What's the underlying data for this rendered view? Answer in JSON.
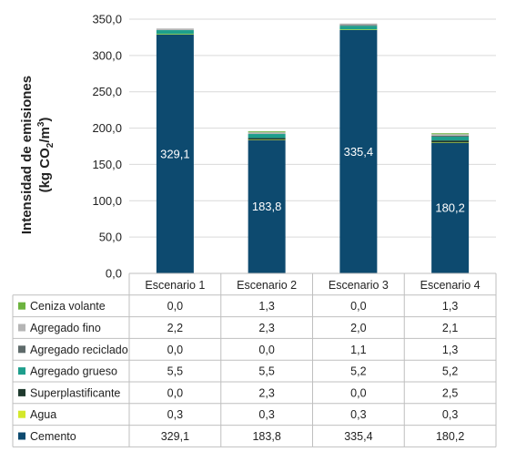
{
  "chart_data": {
    "type": "bar",
    "stacked": true,
    "title": "",
    "ylabel_line1": "Intensidad de emisiones",
    "ylabel_line2_prefix": "(kg CO",
    "ylabel_sub": "2",
    "ylabel_mid": "/m",
    "ylabel_sup": "3",
    "ylabel_suffix": ")",
    "ylim": [
      0,
      350
    ],
    "yticks": [
      "0,0",
      "50,0",
      "100,0",
      "150,0",
      "200,0",
      "250,0",
      "300,0",
      "350,0"
    ],
    "categories": [
      "Escenario 1",
      "Escenario 2",
      "Escenario 3",
      "Escenario 4"
    ],
    "series": [
      {
        "name": "Cemento",
        "color": "#0d4a6f",
        "values": [
          329.1,
          183.8,
          335.4,
          180.2
        ],
        "labels": [
          "329,1",
          "183,8",
          "335,4",
          "180,2"
        ]
      },
      {
        "name": "Agua",
        "color": "#d4e82a",
        "values": [
          0.3,
          0.3,
          0.3,
          0.3
        ],
        "labels": [
          "0,3",
          "0,3",
          "0,3",
          "0,3"
        ]
      },
      {
        "name": "Superplastificante",
        "color": "#1f3a2e",
        "values": [
          0.0,
          2.3,
          0.0,
          2.5
        ],
        "labels": [
          "0,0",
          "2,3",
          "0,0",
          "2,5"
        ]
      },
      {
        "name": "Agregado grueso",
        "color": "#1e9e8c",
        "values": [
          5.5,
          5.5,
          5.2,
          5.2
        ],
        "labels": [
          "5,5",
          "5,5",
          "5,2",
          "5,2"
        ]
      },
      {
        "name": "Agregado reciclado",
        "color": "#5e6a6a",
        "values": [
          0.0,
          0.0,
          1.1,
          1.3
        ],
        "labels": [
          "0,0",
          "0,0",
          "1,1",
          "1,3"
        ]
      },
      {
        "name": "Agregado fino",
        "color": "#b5b5b5",
        "values": [
          2.2,
          2.3,
          2.0,
          2.1
        ],
        "labels": [
          "2,2",
          "2,3",
          "2,0",
          "2,1"
        ]
      },
      {
        "name": "Ceniza volante",
        "color": "#6cb33f",
        "values": [
          0.0,
          1.3,
          0.0,
          1.3
        ],
        "labels": [
          "0,0",
          "1,3",
          "0,0",
          "1,3"
        ]
      }
    ],
    "table_row_order": [
      "Ceniza volante",
      "Agregado fino",
      "Agregado reciclado",
      "Agregado grueso",
      "Superplastificante",
      "Agua",
      "Cemento"
    ],
    "data_labels_series": "Cemento",
    "grid": true,
    "legend": "table-below"
  }
}
